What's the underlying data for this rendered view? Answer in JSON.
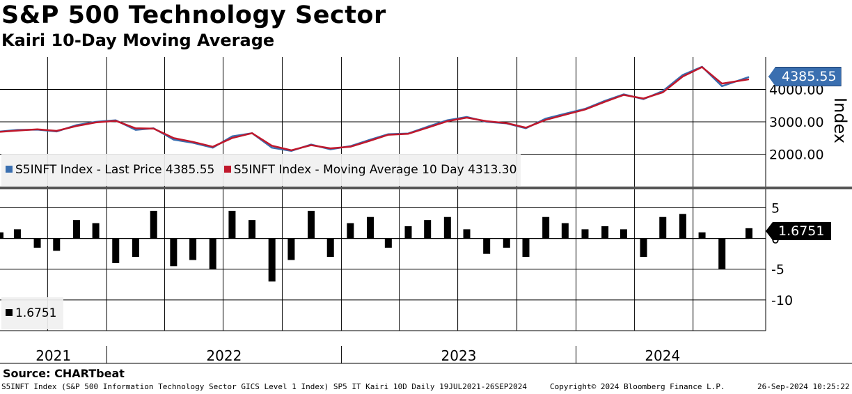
{
  "header": {
    "title": "S&P 500 Technology Sector",
    "subtitle": "Kairi 10-Day Moving Average"
  },
  "colors": {
    "last_price": "#3a6fb0",
    "moving_average": "#c0182c",
    "kairi": "#000000",
    "grid": "#000000"
  },
  "chart_data": [
    {
      "type": "line",
      "ylabel": "Index",
      "ylim": [
        1000,
        5000
      ],
      "yticks": [
        2000,
        3000,
        4000
      ],
      "ytick_labels": [
        "2000.00",
        "3000.00",
        "4000.00"
      ],
      "xlim": [
        "2021-07-19",
        "2024-09-26"
      ],
      "grid": true,
      "legend_placement": "bottom-left",
      "x": [
        "2021-07",
        "2021-08",
        "2021-09",
        "2021-10",
        "2021-11",
        "2021-12",
        "2022-01",
        "2022-02",
        "2022-03",
        "2022-04",
        "2022-05",
        "2022-06",
        "2022-07",
        "2022-08",
        "2022-09",
        "2022-10",
        "2022-11",
        "2022-12",
        "2023-01",
        "2023-02",
        "2023-03",
        "2023-04",
        "2023-05",
        "2023-06",
        "2023-07",
        "2023-08",
        "2023-09",
        "2023-10",
        "2023-11",
        "2023-12",
        "2024-01",
        "2024-02",
        "2024-03",
        "2024-04",
        "2024-05",
        "2024-06",
        "2024-07",
        "2024-08",
        "2024-09"
      ],
      "series": [
        {
          "name": "S5INFT Index - Last Price",
          "last_value": "4385.55",
          "values": [
            2700,
            2750,
            2760,
            2700,
            2900,
            3000,
            3050,
            2750,
            2800,
            2450,
            2350,
            2200,
            2550,
            2650,
            2200,
            2100,
            2300,
            2150,
            2250,
            2450,
            2620,
            2640,
            2850,
            3050,
            3150,
            3000,
            2950,
            2800,
            3100,
            3250,
            3400,
            3650,
            3850,
            3700,
            3950,
            4450,
            4700,
            4100,
            4385.55
          ]
        },
        {
          "name": "S5INFT Index - Moving Average 10 Day",
          "last_value": "4313.30",
          "values": [
            2690,
            2730,
            2770,
            2720,
            2870,
            2980,
            3030,
            2800,
            2790,
            2500,
            2380,
            2230,
            2500,
            2650,
            2260,
            2120,
            2280,
            2180,
            2230,
            2420,
            2600,
            2630,
            2820,
            3020,
            3130,
            3020,
            2960,
            2820,
            3060,
            3220,
            3380,
            3620,
            3830,
            3720,
            3910,
            4400,
            4690,
            4180,
            4313.3
          ]
        }
      ]
    },
    {
      "type": "bar",
      "ylim": [
        -15,
        8
      ],
      "yticks": [
        5,
        0,
        -5,
        -10
      ],
      "ytick_labels": [
        "5",
        "0",
        "-5",
        "-10"
      ],
      "grid": true,
      "legend_placement": "bottom-left",
      "x": [
        "2021-07",
        "2021-08",
        "2021-09",
        "2021-10",
        "2021-11",
        "2021-12",
        "2022-01",
        "2022-02",
        "2022-03",
        "2022-04",
        "2022-05",
        "2022-06",
        "2022-07",
        "2022-08",
        "2022-09",
        "2022-10",
        "2022-11",
        "2022-12",
        "2023-01",
        "2023-02",
        "2023-03",
        "2023-04",
        "2023-05",
        "2023-06",
        "2023-07",
        "2023-08",
        "2023-09",
        "2023-10",
        "2023-11",
        "2023-12",
        "2024-01",
        "2024-02",
        "2024-03",
        "2024-04",
        "2024-05",
        "2024-06",
        "2024-07",
        "2024-08",
        "2024-09"
      ],
      "series": [
        {
          "name": "",
          "last_value": "1.6751",
          "values": [
            1.0,
            1.5,
            -1.5,
            -2.0,
            3.0,
            2.5,
            -4.0,
            -3.0,
            4.5,
            -4.5,
            -3.5,
            -5.0,
            4.5,
            3.0,
            -7.0,
            -3.5,
            4.5,
            -3.0,
            2.5,
            3.5,
            -1.5,
            2.0,
            3.0,
            3.5,
            1.5,
            -2.5,
            -1.5,
            -3.0,
            3.5,
            2.5,
            1.5,
            2.0,
            1.5,
            -3.0,
            3.5,
            4.0,
            1.0,
            -5.0,
            1.6751
          ]
        }
      ]
    }
  ],
  "x_axis": {
    "year_labels": [
      "2021",
      "2022",
      "2023",
      "2024"
    ]
  },
  "legends": {
    "top": [
      {
        "label": "S5INFT Index  - Last Price 4385.55"
      },
      {
        "label": "S5INFT Index  - Moving Average 10 Day 4313.30"
      }
    ],
    "bottom": [
      {
        "label": "1.6751"
      }
    ]
  },
  "callouts": {
    "price": "4385.55",
    "kairi": "1.6751"
  },
  "footer": {
    "source": "Source: CHARTbeat",
    "description": "S5INFT Index (S&P 500 Information Technology Sector GICS Level 1 Index) SP5 IT Kairi 10D  Daily 19JUL2021-26SEP2024",
    "copyright": "Copyright© 2024 Bloomberg Finance L.P.",
    "timestamp": "26-Sep-2024 10:25:22"
  }
}
